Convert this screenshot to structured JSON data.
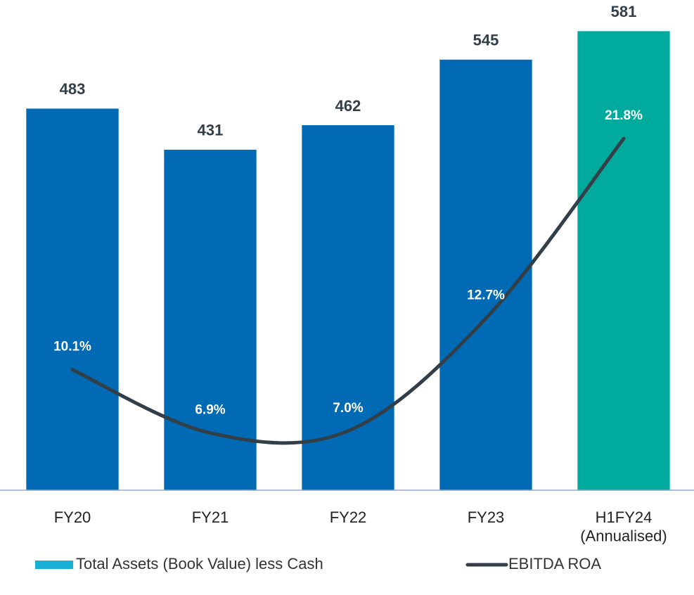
{
  "chart_data": {
    "type": "bar-line",
    "categories": [
      "FY20",
      "FY21",
      "FY22",
      "FY23",
      "H1FY24\n(Annualised)"
    ],
    "series": [
      {
        "name": "Total Assets (Book Value) less Cash",
        "type": "bar",
        "color": "#1ab0d6",
        "point_colors": [
          "#006ab4",
          "#006ab4",
          "#006ab4",
          "#006ab4",
          "#00ab9d"
        ],
        "values": [
          483,
          431,
          462,
          545,
          581
        ]
      },
      {
        "name": "EBITDA ROA",
        "type": "line",
        "axis": "y2",
        "color": "#333f48",
        "values": [
          10.1,
          6.9,
          7.0,
          12.7,
          21.8
        ],
        "value_labels": [
          "10.1%",
          "6.9%",
          "7.0%",
          "12.7%",
          "21.8%"
        ]
      }
    ],
    "ylim": [
      0,
      600
    ],
    "y2lim": [
      4,
      28
    ],
    "legend": "bottom"
  }
}
